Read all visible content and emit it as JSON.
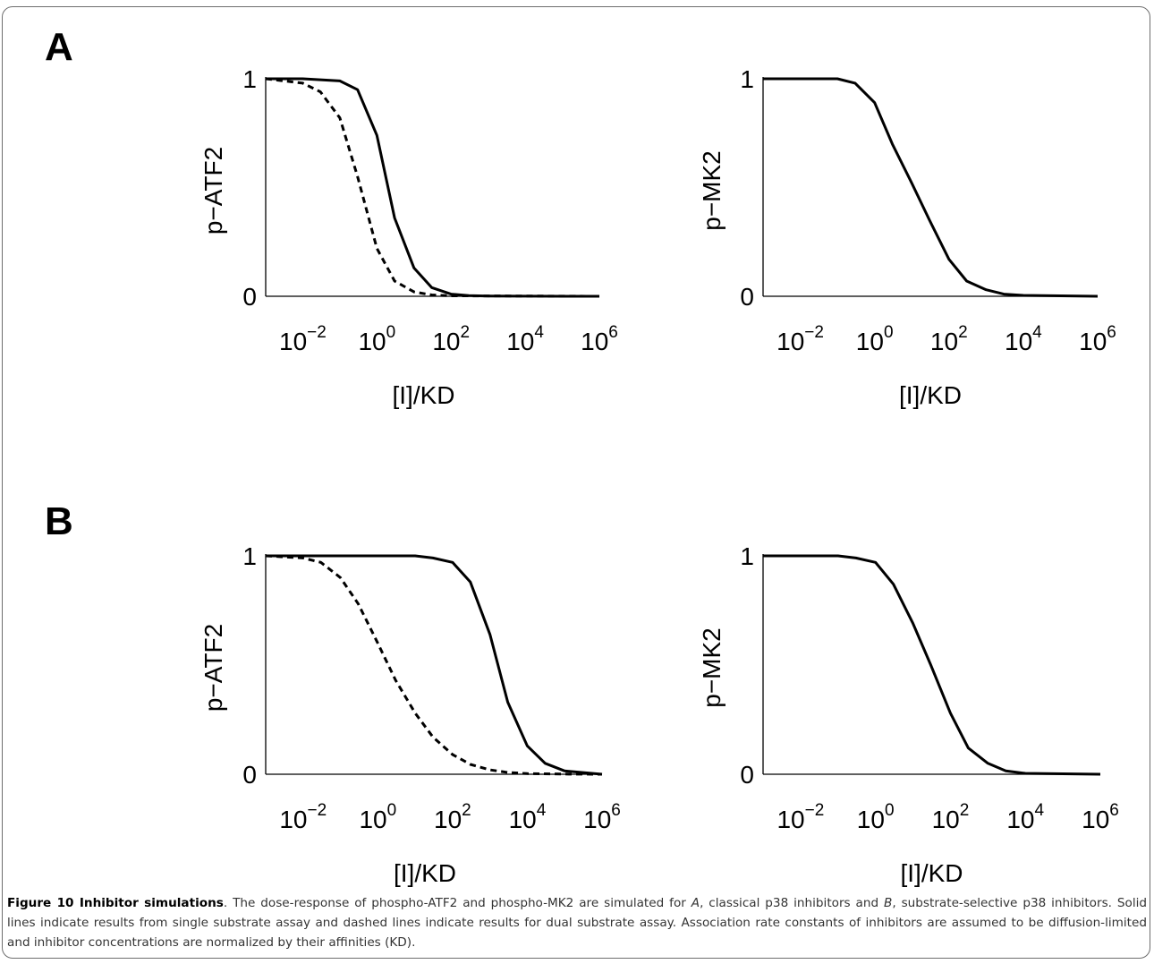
{
  "panels": [
    "A",
    "B"
  ],
  "chart_data": [
    {
      "type": "line",
      "panel": "A",
      "ylabel": "p−ATF2",
      "xlabel": "[I]/KD",
      "xscale": "log",
      "xlim": [
        0.001,
        1000000
      ],
      "ylim": [
        0,
        1
      ],
      "yticks": [
        "0",
        "1"
      ],
      "xticks": [
        "10^-2",
        "10^0",
        "10^2",
        "10^4",
        "10^6"
      ],
      "series": [
        {
          "style": "solid",
          "x": [
            0.001,
            0.01,
            0.1,
            0.3,
            1,
            3,
            10,
            30,
            100,
            300,
            1000,
            1000000
          ],
          "y": [
            1,
            1,
            0.99,
            0.95,
            0.74,
            0.36,
            0.13,
            0.04,
            0.01,
            0.003,
            0.001,
            0
          ]
        },
        {
          "style": "dashed",
          "x": [
            0.001,
            0.01,
            0.03,
            0.1,
            0.3,
            1,
            3,
            10,
            30,
            100,
            1000000
          ],
          "y": [
            1,
            0.98,
            0.94,
            0.82,
            0.55,
            0.22,
            0.07,
            0.02,
            0.006,
            0.002,
            0
          ]
        }
      ]
    },
    {
      "type": "line",
      "panel": "A",
      "ylabel": "p−MK2",
      "xlabel": "[I]/KD",
      "xscale": "log",
      "xlim": [
        0.001,
        1000000
      ],
      "ylim": [
        0,
        1
      ],
      "yticks": [
        "0",
        "1"
      ],
      "xticks": [
        "10^-2",
        "10^0",
        "10^2",
        "10^4",
        "10^6"
      ],
      "series": [
        {
          "style": "solid",
          "x": [
            0.001,
            0.01,
            0.1,
            0.3,
            1,
            3,
            10,
            30,
            100,
            300,
            1000,
            3000,
            10000,
            1000000
          ],
          "y": [
            1,
            1,
            1,
            0.98,
            0.89,
            0.7,
            0.52,
            0.35,
            0.17,
            0.07,
            0.03,
            0.01,
            0.004,
            0
          ]
        }
      ]
    },
    {
      "type": "line",
      "panel": "B",
      "ylabel": "p−ATF2",
      "xlabel": "[I]/KD",
      "xscale": "log",
      "xlim": [
        0.001,
        1000000
      ],
      "ylim": [
        0,
        1
      ],
      "yticks": [
        "0",
        "1"
      ],
      "xticks": [
        "10^-2",
        "10^0",
        "10^2",
        "10^4",
        "10^6"
      ],
      "series": [
        {
          "style": "solid",
          "x": [
            0.001,
            1,
            10,
            30,
            100,
            300,
            1000,
            3000,
            10000,
            30000,
            100000,
            1000000
          ],
          "y": [
            1,
            1,
            1,
            0.99,
            0.97,
            0.88,
            0.64,
            0.33,
            0.13,
            0.05,
            0.015,
            0
          ]
        },
        {
          "style": "dashed",
          "x": [
            0.001,
            0.01,
            0.03,
            0.1,
            0.3,
            1,
            3,
            10,
            30,
            100,
            300,
            1000,
            3000,
            10000,
            100000,
            1000000
          ],
          "y": [
            1,
            0.99,
            0.97,
            0.9,
            0.78,
            0.6,
            0.43,
            0.28,
            0.17,
            0.09,
            0.045,
            0.02,
            0.008,
            0.003,
            0.001,
            0
          ]
        }
      ]
    },
    {
      "type": "line",
      "panel": "B",
      "ylabel": "p−MK2",
      "xlabel": "[I]/KD",
      "xscale": "log",
      "xlim": [
        0.001,
        1000000
      ],
      "ylim": [
        0,
        1
      ],
      "yticks": [
        "0",
        "1"
      ],
      "xticks": [
        "10^-2",
        "10^0",
        "10^2",
        "10^4",
        "10^6"
      ],
      "series": [
        {
          "style": "solid",
          "x": [
            0.001,
            0.01,
            0.1,
            0.3,
            1,
            3,
            10,
            30,
            100,
            300,
            1000,
            3000,
            10000,
            1000000
          ],
          "y": [
            1,
            1,
            1,
            0.99,
            0.97,
            0.87,
            0.69,
            0.5,
            0.28,
            0.12,
            0.05,
            0.015,
            0.004,
            0
          ]
        }
      ]
    }
  ],
  "caption": {
    "figure_label": "Figure 10",
    "title": "Inhibitor simulations",
    "text_1": ". The dose-response of phospho-ATF2 and phospho-MK2 are simulated for ",
    "em_a": "A",
    "text_2": ", classical p38 inhibitors and ",
    "em_b": "B",
    "text_3": ", substrate-selective p38 inhibitors. Solid lines indicate results from single substrate assay and dashed lines indicate results for dual substrate assay. Association rate constants of inhibitors are assumed to be diffusion-limited and inhibitor concentrations are normalized by their affinities (KD)."
  }
}
